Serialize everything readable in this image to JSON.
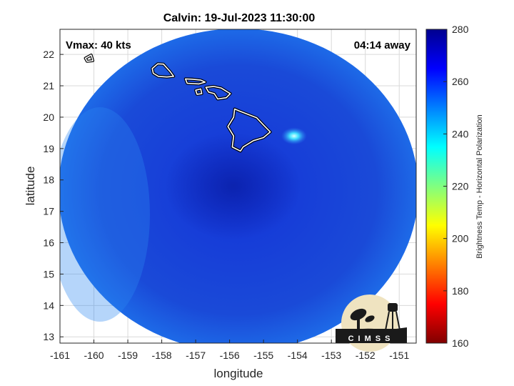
{
  "title": "Calvin: 19-Jul-2023 11:30:00",
  "annotations": {
    "vmax": "Vmax: 40 kts",
    "time_away": "04:14 away"
  },
  "axes": {
    "xlabel": "longitude",
    "ylabel": "latitude",
    "xlim": [
      -161,
      -150.5
    ],
    "ylim": [
      12.8,
      22.8
    ],
    "xticks": [
      "-161",
      "-160",
      "-159",
      "-158",
      "-157",
      "-156",
      "-155",
      "-154",
      "-153",
      "-152",
      "-151"
    ],
    "yticks": [
      "13",
      "14",
      "15",
      "16",
      "17",
      "18",
      "19",
      "20",
      "21",
      "22"
    ],
    "grid": true
  },
  "colorbar": {
    "label": "Brightness Temp - Horizontal Polarization",
    "ticks": [
      "160",
      "180",
      "200",
      "220",
      "240",
      "260",
      "280"
    ],
    "range": [
      160,
      280
    ],
    "colors": [
      "#800000",
      "#ff0000",
      "#ff8000",
      "#ffff00",
      "#80ff80",
      "#00ffff",
      "#0080ff",
      "#0000ff",
      "#00008f"
    ]
  },
  "logo": {
    "text": "CIMSS"
  },
  "storm_center": {
    "lon": -155.9,
    "lat": 17.8
  },
  "hot_spot": {
    "lon": -154.1,
    "lat": 19.4
  },
  "islands": [
    {
      "name": "Niihau",
      "points": [
        [
          -160.25,
          21.88
        ],
        [
          -160.08,
          21.98
        ],
        [
          -160.03,
          21.8
        ],
        [
          -160.2,
          21.78
        ]
      ]
    },
    {
      "name": "Oahu",
      "points": [
        [
          -158.28,
          21.55
        ],
        [
          -158.12,
          21.7
        ],
        [
          -157.95,
          21.69
        ],
        [
          -157.75,
          21.45
        ],
        [
          -157.65,
          21.3
        ],
        [
          -157.85,
          21.28
        ],
        [
          -158.1,
          21.3
        ],
        [
          -158.25,
          21.4
        ]
      ]
    },
    {
      "name": "Molokai",
      "points": [
        [
          -157.3,
          21.22
        ],
        [
          -157.1,
          21.21
        ],
        [
          -156.85,
          21.18
        ],
        [
          -156.72,
          21.12
        ],
        [
          -156.9,
          21.06
        ],
        [
          -157.25,
          21.08
        ]
      ]
    },
    {
      "name": "Lanai",
      "points": [
        [
          -157.0,
          20.86
        ],
        [
          -156.85,
          20.9
        ],
        [
          -156.82,
          20.75
        ],
        [
          -156.96,
          20.73
        ]
      ]
    },
    {
      "name": "Maui",
      "points": [
        [
          -156.7,
          20.95
        ],
        [
          -156.47,
          20.98
        ],
        [
          -156.25,
          20.93
        ],
        [
          -155.98,
          20.75
        ],
        [
          -156.1,
          20.62
        ],
        [
          -156.35,
          20.58
        ],
        [
          -156.45,
          20.75
        ],
        [
          -156.62,
          20.8
        ]
      ]
    },
    {
      "name": "Hawaii",
      "points": [
        [
          -155.85,
          20.26
        ],
        [
          -155.72,
          20.2
        ],
        [
          -155.2,
          19.98
        ],
        [
          -155.0,
          19.75
        ],
        [
          -154.8,
          19.53
        ],
        [
          -155.0,
          19.35
        ],
        [
          -155.3,
          19.25
        ],
        [
          -155.6,
          19.05
        ],
        [
          -155.68,
          18.92
        ],
        [
          -155.92,
          19.05
        ],
        [
          -155.88,
          19.4
        ],
        [
          -156.05,
          19.7
        ],
        [
          -155.88,
          20.0
        ]
      ]
    }
  ]
}
